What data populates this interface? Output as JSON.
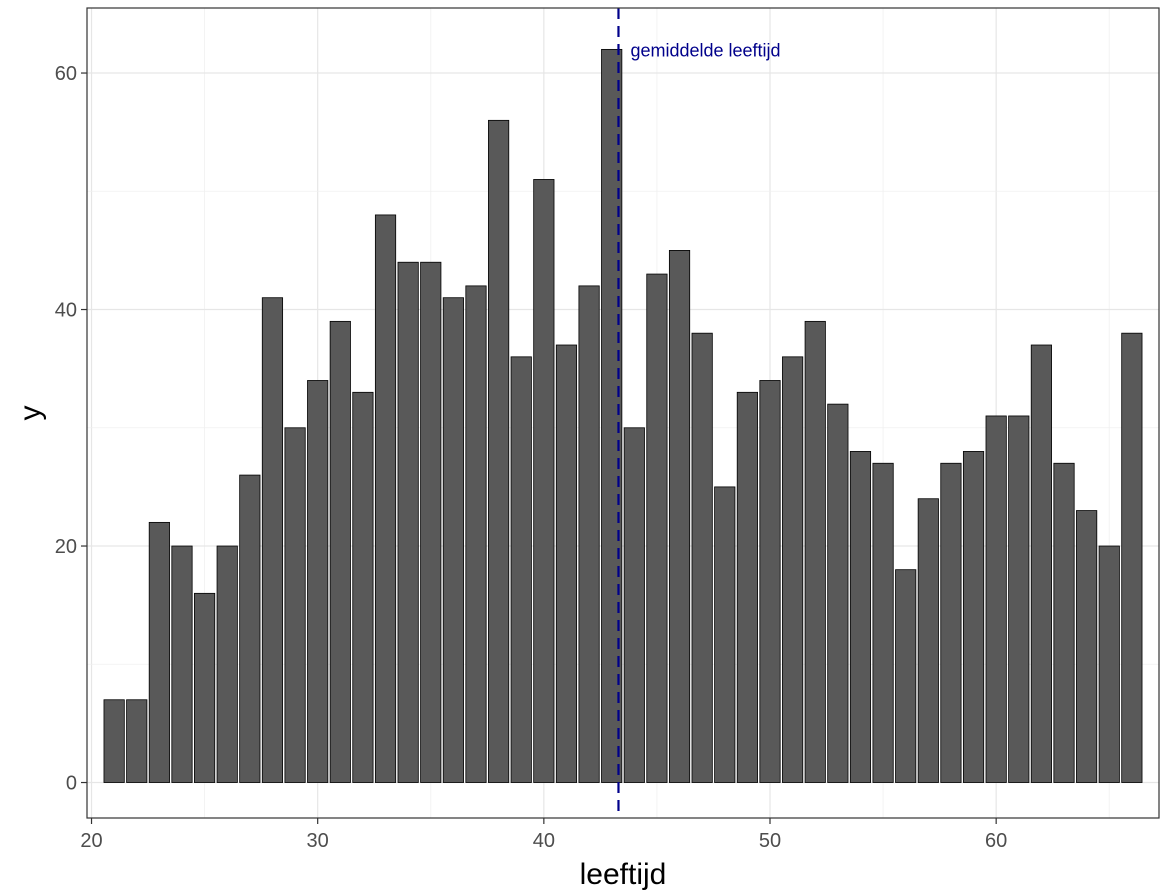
{
  "chart_data": {
    "type": "bar",
    "title": "",
    "xlabel": "leeftijd",
    "ylabel": "y",
    "x": [
      21,
      22,
      23,
      24,
      25,
      26,
      27,
      28,
      29,
      30,
      31,
      32,
      33,
      34,
      35,
      36,
      37,
      38,
      39,
      40,
      41,
      42,
      43,
      44,
      45,
      46,
      47,
      48,
      49,
      50,
      51,
      52,
      53,
      54,
      55,
      56,
      57,
      58,
      59,
      60,
      61,
      62,
      63,
      64,
      65,
      66
    ],
    "values": [
      7,
      7,
      22,
      20,
      16,
      20,
      26,
      41,
      30,
      34,
      39,
      33,
      48,
      44,
      44,
      41,
      42,
      56,
      36,
      51,
      37,
      42,
      62,
      30,
      43,
      45,
      38,
      25,
      33,
      34,
      36,
      39,
      32,
      28,
      27,
      18,
      24,
      27,
      28,
      31,
      31,
      37,
      27,
      23,
      20,
      38
    ],
    "xlim": [
      19.8,
      67.2
    ],
    "ylim": [
      -3,
      65.5
    ],
    "x_ticks": [
      20,
      30,
      40,
      50,
      60
    ],
    "y_ticks": [
      0,
      20,
      40,
      60
    ],
    "grid": true,
    "legend": "none",
    "bar_color": "#595959",
    "bar_edge_color": "#000000",
    "annotation": {
      "type": "vertical-dashed-line",
      "x": 43.3,
      "label": "gemiddelde leeftijd",
      "color": "#00008b"
    }
  }
}
